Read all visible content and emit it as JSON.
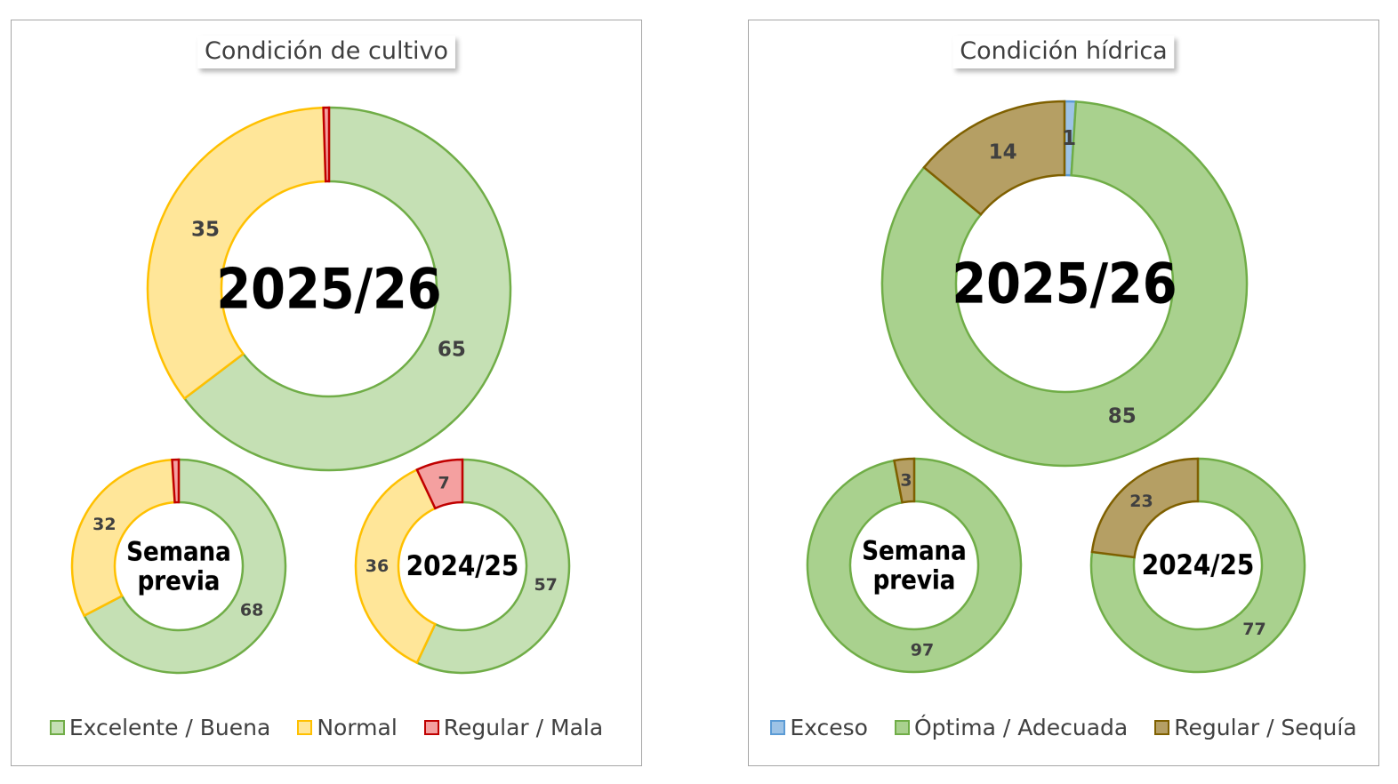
{
  "chart_data": [
    {
      "type": "donut",
      "title": "Condición de cultivo",
      "legend": [
        {
          "label": "Excelente / Buena",
          "fill": "#c5e0b4",
          "stroke": "#70ad47"
        },
        {
          "label": "Normal",
          "fill": "#ffe699",
          "stroke": "#ffc000"
        },
        {
          "label": "Regular / Mala",
          "fill": "#f4a0a0",
          "stroke": "#c00000"
        }
      ],
      "donuts": [
        {
          "label": "2025/26",
          "values": [
            65,
            35,
            0.5
          ],
          "labels": [
            "65",
            "35",
            ""
          ]
        },
        {
          "label": "Semana previa",
          "values": [
            68,
            32,
            1
          ],
          "labels": [
            "68",
            "32",
            ""
          ]
        },
        {
          "label": "2024/25",
          "values": [
            57,
            36,
            7
          ],
          "labels": [
            "57",
            "36",
            "7"
          ]
        }
      ]
    },
    {
      "type": "donut",
      "title": "Condición hídrica",
      "legend": [
        {
          "label": "Exceso",
          "fill": "#9dc3e6",
          "stroke": "#5b9bd5"
        },
        {
          "label": "Óptima / Adecuada",
          "fill": "#a9d18e",
          "stroke": "#70ad47"
        },
        {
          "label": "Regular / Sequía",
          "fill": "#b59f64",
          "stroke": "#7f6000"
        }
      ],
      "donuts": [
        {
          "label": "2025/26",
          "values": [
            1,
            85,
            14
          ],
          "labels": [
            "1",
            "85",
            "14"
          ]
        },
        {
          "label": "Semana previa",
          "values": [
            0,
            97,
            3
          ],
          "labels": [
            "",
            "97",
            "3"
          ]
        },
        {
          "label": "2024/25",
          "values": [
            0,
            77,
            23
          ],
          "labels": [
            "",
            "77",
            "23"
          ]
        }
      ]
    }
  ]
}
